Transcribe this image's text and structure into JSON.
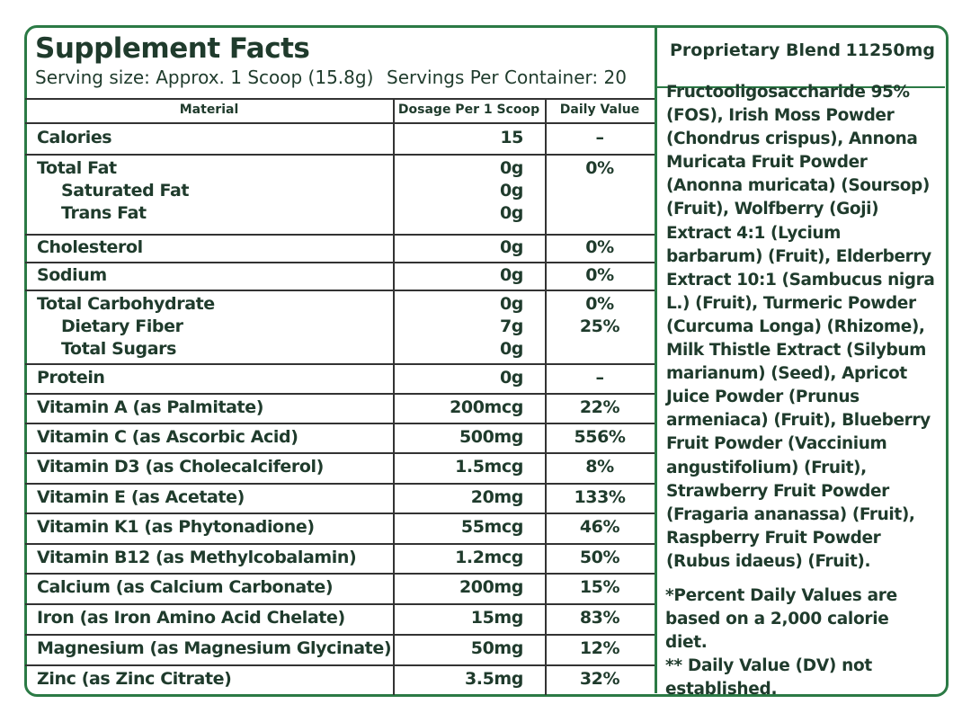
{
  "header": {
    "title": "Supplement Facts",
    "serving_size": "Serving size: Approx. 1 Scoop (15.8g)",
    "servings_per_container": "Servings Per Container: 20"
  },
  "table": {
    "columns": [
      "Material",
      "Dosage Per 1 Scoop",
      "Daily Value"
    ],
    "rows": [
      [
        {
          "name": "Calories",
          "dosage": "15",
          "daily_value": "–"
        }
      ],
      [
        {
          "name": "Total Fat",
          "dosage": "0g",
          "daily_value": "0%"
        },
        {
          "name": "Saturated Fat",
          "dosage": "0g"
        },
        {
          "name": "Trans Fat",
          "dosage": "0g"
        }
      ],
      [
        {
          "name": "Cholesterol",
          "dosage": "0g",
          "daily_value": "0%"
        }
      ],
      [
        {
          "name": "Sodium",
          "dosage": "0g",
          "daily_value": "0%"
        }
      ],
      [
        {
          "name": "Total Carbohydrate",
          "dosage": "0g",
          "daily_value": "0%"
        },
        {
          "name": "Dietary Fiber",
          "dosage": "7g",
          "daily_value": "25%"
        },
        {
          "name": "Total Sugars",
          "dosage": "0g"
        }
      ],
      [
        {
          "name": "Protein",
          "dosage": "0g",
          "daily_value": "–"
        }
      ],
      [
        {
          "name": "Vitamin A (as Palmitate)",
          "dosage": "200mcg",
          "daily_value": "22%"
        }
      ],
      [
        {
          "name": "Vitamin C (as Ascorbic Acid)",
          "dosage": "500mg",
          "daily_value": "556%"
        }
      ],
      [
        {
          "name": "Vitamin D3 (as Cholecalciferol)",
          "dosage": "1.5mcg",
          "daily_value": "8%"
        }
      ],
      [
        {
          "name": "Vitamin E (as Acetate)",
          "dosage": "20mg",
          "daily_value": "133%"
        }
      ],
      [
        {
          "name": "Vitamin K1 (as Phytonadione)",
          "dosage": "55mcg",
          "daily_value": "46%"
        }
      ],
      [
        {
          "name": "Vitamin B12 (as Methylcobalamin)",
          "dosage": "1.2mcg",
          "daily_value": "50%"
        }
      ],
      [
        {
          "name": "Calcium (as Calcium Carbonate)",
          "dosage": "200mg",
          "daily_value": "15%"
        }
      ],
      [
        {
          "name": "Iron (as Iron Amino Acid Chelate)",
          "dosage": "15mg",
          "daily_value": "83%"
        }
      ],
      [
        {
          "name": "Magnesium (as Magnesium Glycinate)",
          "dosage": "50mg",
          "daily_value": "12%"
        }
      ],
      [
        {
          "name": "Zinc (as Zinc Citrate)",
          "dosage": "3.5mg",
          "daily_value": "32%"
        }
      ]
    ]
  },
  "blend": {
    "title": "Proprietary Blend",
    "amount": "11250mg",
    "ingredients": "Fructooligosaccharide 95% (FOS), Irish Moss Powder (Chondrus crispus), Annona Muricata Fruit Powder (Anonna muricata) (Soursop) (Fruit), Wolfberry (Goji) Extract 4:1 (Lycium barbarum) (Fruit), Elderberry Extract 10:1 (Sambucus nigra L.) (Fruit), Turmeric Powder (Curcuma Longa) (Rhizome), Milk Thistle Extract (Silybum marianum) (Seed), Apricot Juice Powder (Prunus armeniaca) (Fruit), Blueberry Fruit Powder (Vaccinium angustifolium) (Fruit), Strawberry Fruit Powder (Fragaria ananassa) (Fruit), Raspberry Fruit Powder (Rubus idaeus) (Fruit).",
    "footnotes": [
      "*Percent Daily Values are based on a 2,000 calorie diet.",
      "** Daily Value (DV) not established."
    ]
  }
}
